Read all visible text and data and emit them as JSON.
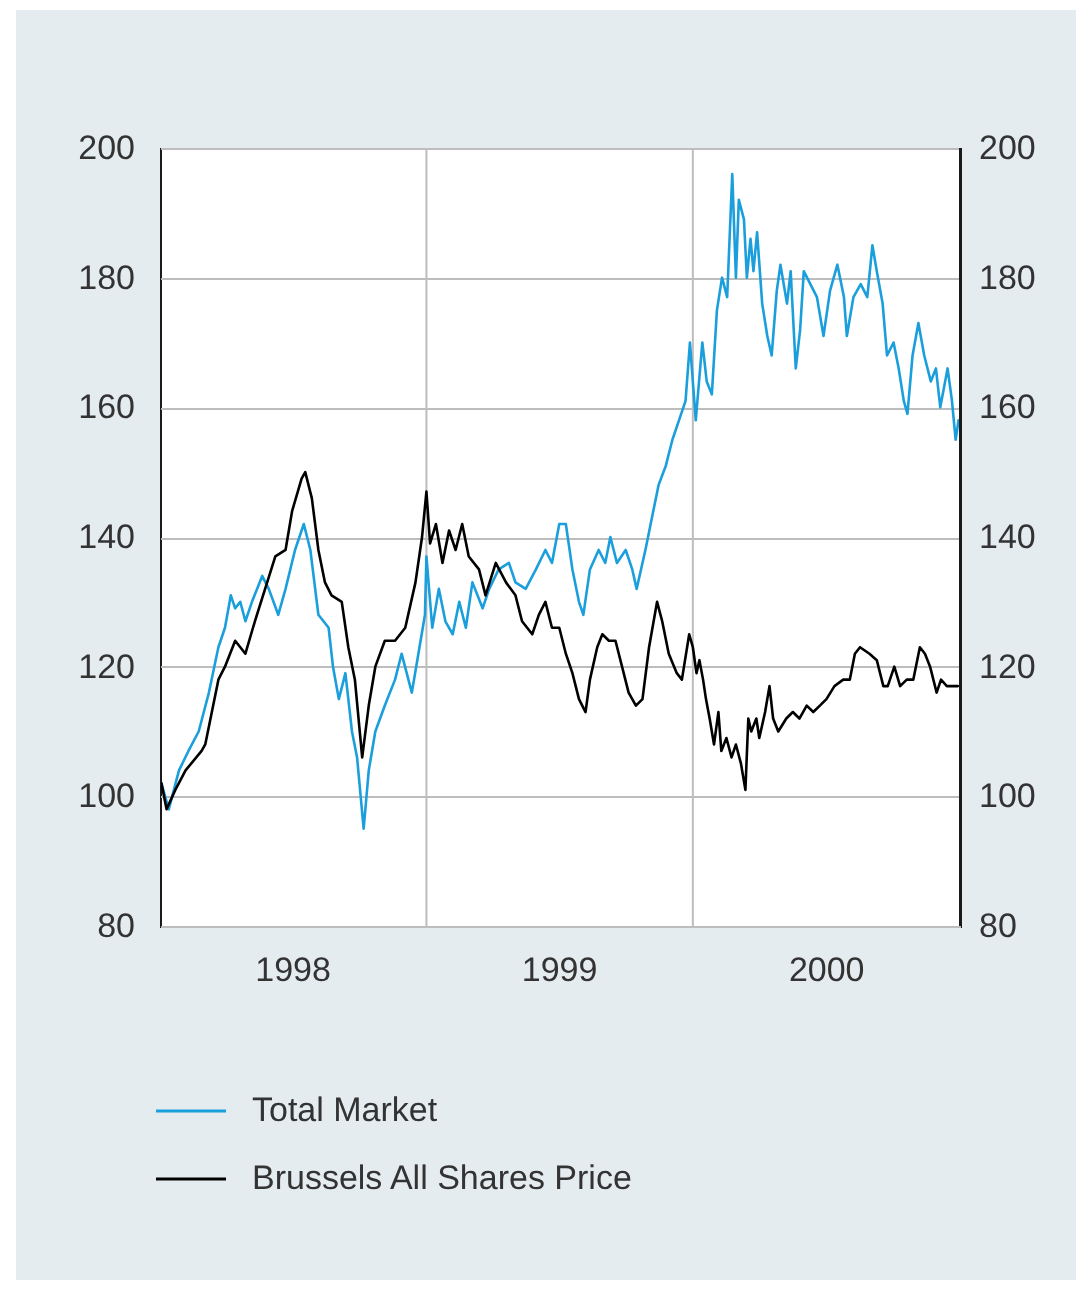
{
  "chart_data": {
    "type": "line",
    "xlim": [
      "1998-01-01",
      "2001-01-01"
    ],
    "xticks": [
      {
        "value": "1998-07-01",
        "label": "1998"
      },
      {
        "value": "1999-01-01",
        "label": null
      },
      {
        "value": "1999-07-01",
        "label": "1999"
      },
      {
        "value": "2000-01-01",
        "label": null
      },
      {
        "value": "2000-07-01",
        "label": "2000"
      }
    ],
    "ylim": [
      80,
      200
    ],
    "yticks": [
      80,
      100,
      120,
      140,
      160,
      180,
      200
    ],
    "y2lim": [
      80,
      200
    ],
    "y2ticks": [
      80,
      100,
      120,
      140,
      160,
      180,
      200
    ],
    "grid": true,
    "legend": "bottom",
    "series": [
      {
        "name": "Total Market",
        "color": "#1a9fdc",
        "x": [
          "1998-01-03",
          "1998-01-13",
          "1998-01-27",
          "1998-02-09",
          "1998-02-23",
          "1998-03-09",
          "1998-03-22",
          "1998-03-31",
          "1998-04-08",
          "1998-04-14",
          "1998-04-21",
          "1998-04-28",
          "1998-05-07",
          "1998-05-21",
          "1998-05-30",
          "1998-06-12",
          "1998-06-22",
          "1998-07-05",
          "1998-07-17",
          "1998-07-26",
          "1998-08-06",
          "1998-08-20",
          "1998-08-26",
          "1998-09-03",
          "1998-09-12",
          "1998-09-21",
          "1998-09-28",
          "1998-10-07",
          "1998-10-14",
          "1998-10-23",
          "1998-11-05",
          "1998-11-19",
          "1998-11-28",
          "1998-12-12",
          "1998-12-21",
          "1998-12-30",
          "1999-01-01",
          "1999-01-09",
          "1999-01-18",
          "1999-01-27",
          "1999-02-06",
          "1999-02-15",
          "1999-02-24",
          "1999-03-05",
          "1999-03-19",
          "1999-03-28",
          "1999-04-10",
          "1999-04-24",
          "1999-05-03",
          "1999-05-17",
          "1999-05-31",
          "1999-06-13",
          "1999-06-22",
          "1999-07-02",
          "1999-07-11",
          "1999-07-20",
          "1999-07-29",
          "1999-08-04",
          "1999-08-13",
          "1999-08-25",
          "1999-09-03",
          "1999-09-10",
          "1999-09-19",
          "1999-10-01",
          "1999-10-10",
          "1999-10-16",
          "1999-10-28",
          "1999-11-06",
          "1999-11-15",
          "1999-11-25",
          "1999-12-04",
          "1999-12-13",
          "1999-12-22",
          "1999-12-28",
          "2000-01-05",
          "2000-01-14",
          "2000-01-20",
          "2000-01-27",
          "2000-02-03",
          "2000-02-10",
          "2000-02-17",
          "2000-02-24",
          "2000-02-29",
          "2000-03-04",
          "2000-03-11",
          "2000-03-15",
          "2000-03-20",
          "2000-03-24",
          "2000-03-29",
          "2000-04-05",
          "2000-04-12",
          "2000-04-18",
          "2000-04-25",
          "2000-04-30",
          "2000-05-09",
          "2000-05-14",
          "2000-05-21",
          "2000-05-27",
          "2000-06-01",
          "2000-06-10",
          "2000-06-19",
          "2000-06-28",
          "2000-07-07",
          "2000-07-17",
          "2000-07-26",
          "2000-07-30",
          "2000-08-08",
          "2000-08-18",
          "2000-08-27",
          "2000-09-03",
          "2000-09-09",
          "2000-09-17",
          "2000-09-23",
          "2000-10-02",
          "2000-10-09",
          "2000-10-16",
          "2000-10-21",
          "2000-10-28",
          "2000-11-05",
          "2000-11-13",
          "2000-11-22",
          "2000-11-29",
          "2000-12-05",
          "2000-12-15",
          "2000-12-21",
          "2000-12-26",
          "2000-12-30"
        ],
        "values": [
          102,
          98,
          104,
          107,
          110,
          116,
          123,
          126,
          131,
          129,
          130,
          127,
          130,
          134,
          132,
          128,
          132,
          138,
          142,
          138,
          128,
          126,
          120,
          115,
          119,
          110,
          106,
          95,
          104,
          110,
          114,
          118,
          122,
          116,
          122,
          128,
          137,
          126,
          132,
          127,
          125,
          130,
          126,
          133,
          129,
          132,
          135,
          136,
          133,
          132,
          135,
          138,
          136,
          142,
          142,
          135,
          130,
          128,
          135,
          138,
          136,
          140,
          136,
          138,
          135,
          132,
          138,
          143,
          148,
          151,
          155,
          158,
          161,
          170,
          158,
          170,
          164,
          162,
          175,
          180,
          177,
          196,
          180,
          192,
          189,
          180,
          186,
          181,
          187,
          176,
          171,
          168,
          178,
          182,
          176,
          181,
          166,
          172,
          181,
          179,
          177,
          171,
          178,
          182,
          177,
          171,
          177,
          179,
          177,
          185,
          181,
          176,
          168,
          170,
          166,
          161,
          159,
          168,
          173,
          168,
          164,
          166,
          160,
          166,
          161,
          155,
          158
        ]
      },
      {
        "name": "Brussels All Shares Price",
        "color": "#000000",
        "x": [
          "1998-01-03",
          "1998-01-10",
          "1998-01-22",
          "1998-02-05",
          "1998-02-27",
          "1998-03-04",
          "1998-03-22",
          "1998-03-31",
          "1998-04-14",
          "1998-04-28",
          "1998-05-11",
          "1998-05-25",
          "1998-06-08",
          "1998-06-22",
          "1998-07-01",
          "1998-07-14",
          "1998-07-19",
          "1998-07-28",
          "1998-08-06",
          "1998-08-15",
          "1998-08-24",
          "1998-09-07",
          "1998-09-16",
          "1998-09-25",
          "1998-10-05",
          "1998-10-14",
          "1998-10-23",
          "1998-11-05",
          "1998-11-19",
          "1998-12-03",
          "1998-12-17",
          "1998-12-26",
          "1999-01-01",
          "1999-01-06",
          "1999-01-14",
          "1999-01-23",
          "1999-02-01",
          "1999-02-10",
          "1999-02-19",
          "1999-02-28",
          "1999-03-14",
          "1999-03-23",
          "1999-04-06",
          "1999-04-20",
          "1999-05-03",
          "1999-05-12",
          "1999-05-26",
          "1999-06-04",
          "1999-06-13",
          "1999-06-22",
          "1999-07-02",
          "1999-07-11",
          "1999-07-20",
          "1999-07-29",
          "1999-08-07",
          "1999-08-13",
          "1999-08-23",
          "1999-08-30",
          "1999-09-08",
          "1999-09-17",
          "1999-09-26",
          "1999-10-05",
          "1999-10-15",
          "1999-10-24",
          "1999-11-02",
          "1999-11-13",
          "1999-11-20",
          "1999-11-29",
          "1999-12-10",
          "1999-12-17",
          "1999-12-27",
          "2000-01-01",
          "2000-01-06",
          "2000-01-10",
          "2000-01-15",
          "2000-01-19",
          "2000-01-24",
          "2000-01-30",
          "2000-02-05",
          "2000-02-09",
          "2000-02-16",
          "2000-02-23",
          "2000-02-29",
          "2000-03-07",
          "2000-03-13",
          "2000-03-17",
          "2000-03-21",
          "2000-03-28",
          "2000-04-01",
          "2000-04-09",
          "2000-04-15",
          "2000-04-20",
          "2000-04-27",
          "2000-05-08",
          "2000-05-17",
          "2000-05-26",
          "2000-06-05",
          "2000-06-14",
          "2000-06-23",
          "2000-07-02",
          "2000-07-13",
          "2000-07-25",
          "2000-08-03",
          "2000-08-10",
          "2000-08-17",
          "2000-08-30",
          "2000-09-09",
          "2000-09-18",
          "2000-09-24",
          "2000-10-03",
          "2000-10-11",
          "2000-10-20",
          "2000-10-29",
          "2000-11-07",
          "2000-11-14",
          "2000-11-21",
          "2000-11-30",
          "2000-12-06",
          "2000-12-14",
          "2000-12-23",
          "2000-12-29"
        ],
        "values": [
          102,
          98,
          101,
          104,
          107,
          108,
          118,
          120,
          124,
          122,
          127,
          132,
          137,
          138,
          144,
          149,
          150,
          146,
          138,
          133,
          131,
          130,
          123,
          118,
          106,
          114,
          120,
          124,
          124,
          126,
          133,
          140,
          147,
          139,
          142,
          136,
          141,
          138,
          142,
          137,
          135,
          131,
          136,
          133,
          131,
          127,
          125,
          128,
          130,
          126,
          126,
          122,
          119,
          115,
          113,
          118,
          123,
          125,
          124,
          124,
          120,
          116,
          114,
          115,
          123,
          130,
          127,
          122,
          119,
          118,
          125,
          123,
          119,
          121,
          118,
          115,
          112,
          108,
          113,
          107,
          109,
          106,
          108,
          105,
          101,
          112,
          110,
          112,
          109,
          113,
          117,
          112,
          110,
          112,
          113,
          112,
          114,
          113,
          114,
          115,
          117,
          118,
          118,
          122,
          123,
          122,
          121,
          117,
          117,
          120,
          117,
          118,
          118,
          123,
          122,
          120,
          116,
          118,
          117,
          117,
          117
        ]
      }
    ]
  }
}
